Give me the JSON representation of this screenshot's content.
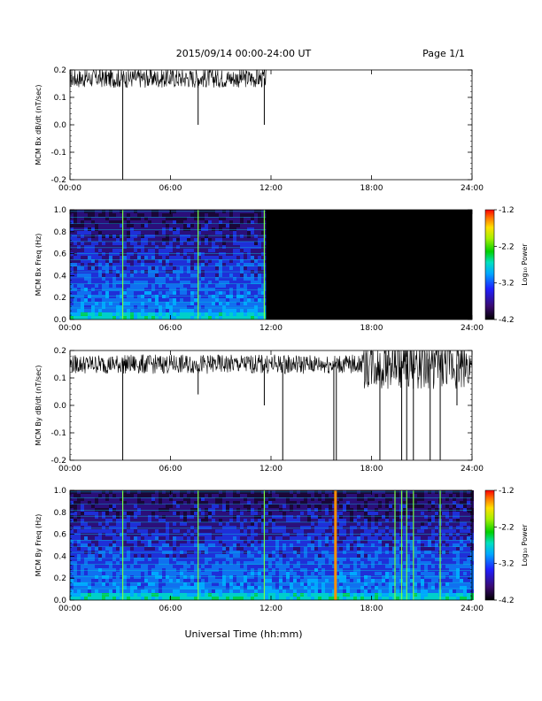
{
  "header": {
    "title": "2015/09/14  00:00-24:00 UT",
    "page": "Page 1/1"
  },
  "footer": {
    "xlabel": "Universal Time (hh:mm)"
  },
  "colors": {
    "trace": "#000000",
    "empty_spectrogram": "#000000"
  },
  "chart_data": [
    {
      "type": "line",
      "ylabel": "MCM Bx dB/dt (nT/sec)",
      "ylim": [
        -0.2,
        0.2
      ],
      "yticks": [
        "0.2",
        "0.1",
        "0.0",
        "-0.1",
        "-0.2"
      ],
      "xticks": [
        "00:00",
        "06:00",
        "12:00",
        "18:00",
        "24:00"
      ],
      "xlim_hours": [
        0,
        24
      ],
      "data_end_hour": 11.7,
      "baseline": 0.17,
      "spikes": [
        {
          "t": 3.15,
          "min": -0.2
        },
        {
          "t": 7.65,
          "min": -0.0
        },
        {
          "t": 11.6,
          "min": 0.0
        }
      ]
    },
    {
      "type": "heatmap",
      "ylabel": "MCM Bx Freq (Hz)",
      "ylim": [
        0.0,
        1.0
      ],
      "yticks": [
        "1.0",
        "0.8",
        "0.6",
        "0.4",
        "0.2",
        "0.0"
      ],
      "xticks": [
        "00:00",
        "06:00",
        "12:00",
        "18:00",
        "24:00"
      ],
      "data_end_hour": 11.7,
      "colorbar": {
        "label": "Log₁₀ Power",
        "ticks": [
          "-1.2",
          "-2.2",
          "-3.2",
          "-4.2"
        ],
        "range": [
          -4.2,
          -1.2
        ]
      },
      "vertical_lines_hours": [
        3.15,
        7.65,
        11.6
      ]
    },
    {
      "type": "line",
      "ylabel": "MCM By dB/dt (nT/sec)",
      "ylim": [
        -0.2,
        0.2
      ],
      "yticks": [
        "0.2",
        "0.1",
        "0.0",
        "-0.1",
        "-0.2"
      ],
      "xticks": [
        "00:00",
        "06:00",
        "12:00",
        "18:00",
        "24:00"
      ],
      "xlim_hours": [
        0,
        24
      ],
      "data_end_hour": 24,
      "baseline": 0.15,
      "spikes": [
        {
          "t": 3.15,
          "min": -0.2
        },
        {
          "t": 7.65,
          "min": 0.04
        },
        {
          "t": 11.6,
          "min": -0.0
        },
        {
          "t": 12.7,
          "min": -0.2
        },
        {
          "t": 15.75,
          "min": -0.2
        },
        {
          "t": 15.9,
          "min": -0.2
        },
        {
          "t": 18.5,
          "min": -0.2
        },
        {
          "t": 19.8,
          "min": -0.2
        },
        {
          "t": 20.1,
          "min": -0.2
        },
        {
          "t": 20.5,
          "min": -0.2
        },
        {
          "t": 21.5,
          "min": -0.2
        },
        {
          "t": 22.1,
          "min": -0.2
        },
        {
          "t": 23.1,
          "min": -0.0
        }
      ]
    },
    {
      "type": "heatmap",
      "ylabel": "MCM By Freq (Hz)",
      "ylim": [
        0.0,
        1.0
      ],
      "yticks": [
        "1.0",
        "0.8",
        "0.6",
        "0.4",
        "0.2",
        "0.0"
      ],
      "xticks": [
        "00:00",
        "06:00",
        "12:00",
        "18:00",
        "24:00"
      ],
      "data_end_hour": 24,
      "colorbar": {
        "label": "Log₁₀ Power",
        "ticks": [
          "-1.2",
          "-2.2",
          "-3.2",
          "-4.2"
        ],
        "range": [
          -4.2,
          -1.2
        ]
      },
      "vertical_lines_hours": [
        3.15,
        7.65,
        11.6,
        15.85,
        19.4,
        19.8,
        20.1,
        20.5,
        22.1
      ]
    }
  ]
}
